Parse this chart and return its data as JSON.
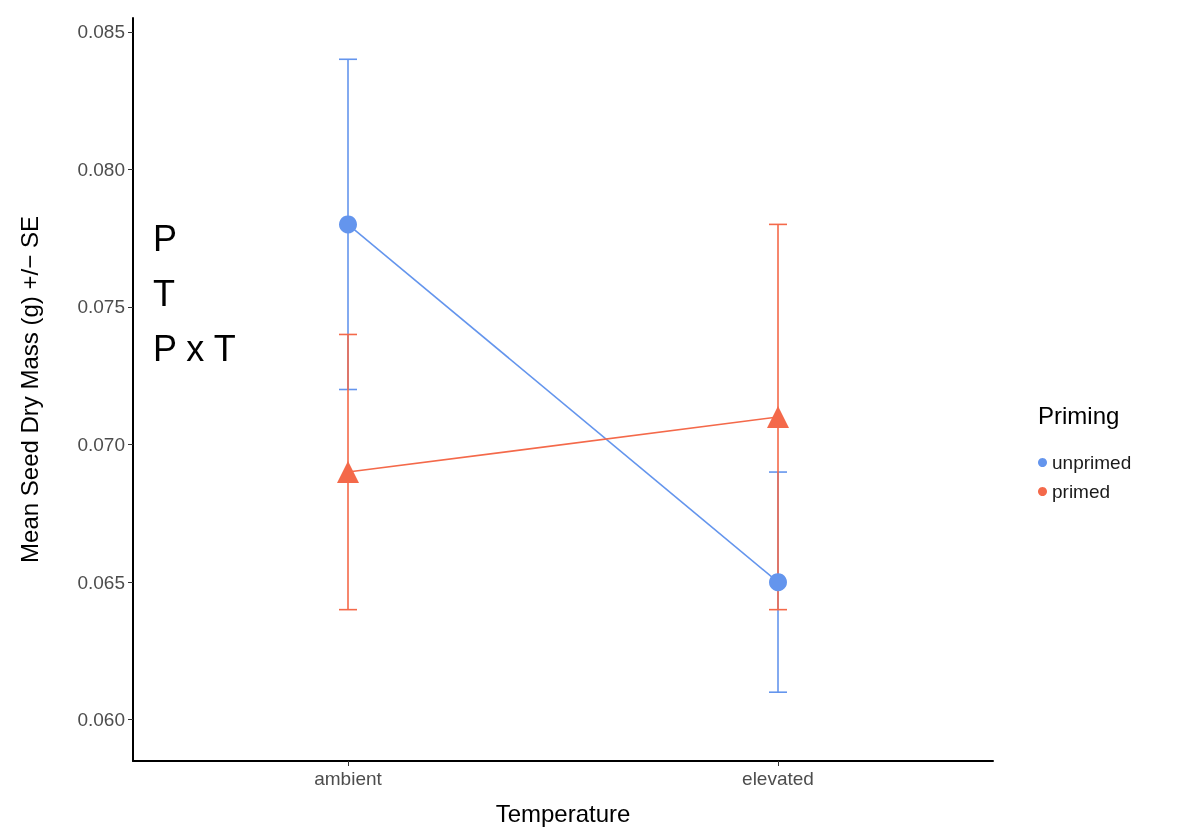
{
  "chart_data": {
    "type": "line",
    "xlabel": "Temperature",
    "ylabel": "Mean Seed Dry Mass (g) +/− SE",
    "legend_title": "Priming",
    "categories": [
      "ambient",
      "elevated"
    ],
    "series": [
      {
        "name": "unprimed",
        "color": "#6495ed",
        "marker": "circle",
        "values": [
          0.078,
          0.065
        ],
        "errors": [
          0.006,
          0.004
        ]
      },
      {
        "name": "primed",
        "color": "#f4694a",
        "marker": "triangle",
        "values": [
          0.069,
          0.071
        ],
        "errors": [
          0.005,
          0.007
        ]
      }
    ],
    "ylim": [
      0.0585,
      0.0855
    ],
    "yticks": [
      {
        "value": 0.06,
        "label": "0.060"
      },
      0.065,
      {
        "value": 0.07,
        "label": "0.070"
      },
      0.075,
      {
        "value": 0.08,
        "label": "0.080"
      },
      0.085
    ],
    "annotations": [
      "P",
      "T",
      "P x T"
    ],
    "grid": false,
    "legend": "right"
  }
}
